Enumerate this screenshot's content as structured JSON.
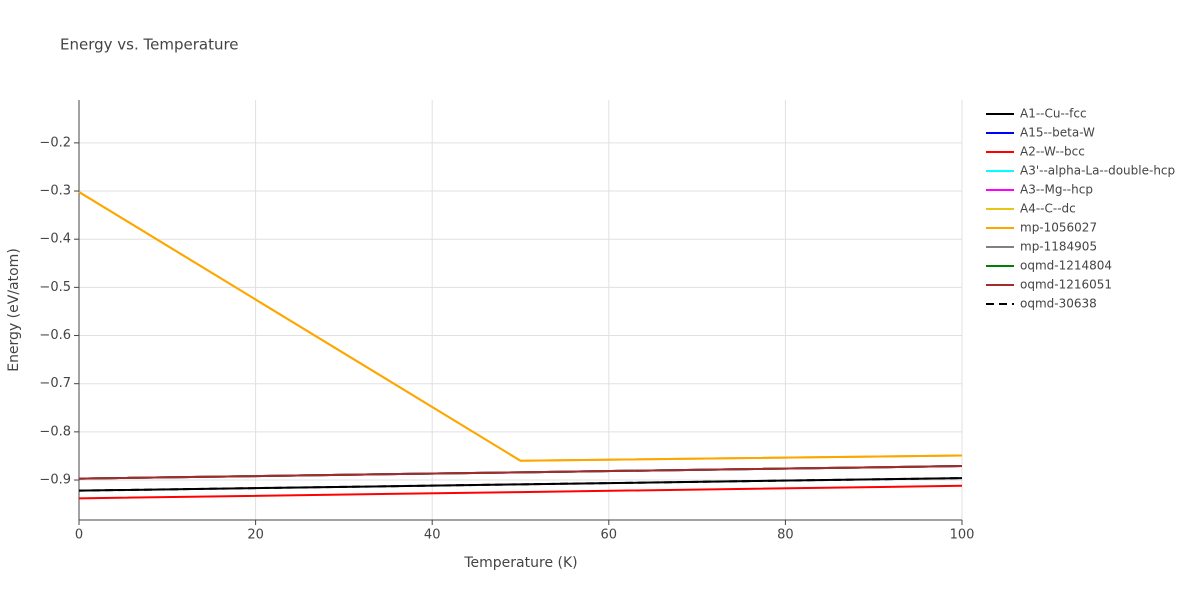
{
  "chart_data": {
    "type": "line",
    "title": "Energy vs. Temperature",
    "x_label": "Temperature (K)",
    "y_label": "Energy (eV/atom)",
    "x": [
      0,
      50,
      100
    ],
    "series": [
      {
        "name": "A1--Cu--fcc",
        "color": "#000000",
        "values": [
          -0.922,
          -0.909,
          -0.896
        ]
      },
      {
        "name": "A15--beta-W",
        "color": "#0000ff",
        "values": [
          -0.897,
          -0.884,
          -0.871
        ]
      },
      {
        "name": "A2--W--bcc",
        "color": "#ff0000",
        "values": [
          -0.938,
          -0.925,
          -0.912
        ]
      },
      {
        "name": "A3'--alpha-La--double-hcp",
        "color": "#00ffff",
        "values": [
          -0.897,
          -0.884,
          -0.871
        ]
      },
      {
        "name": "A3--Mg--hcp",
        "color": "#ff00ff",
        "values": [
          -0.897,
          -0.884,
          -0.871
        ]
      },
      {
        "name": "A4--C--dc",
        "color": "#e6c619",
        "values": [
          -0.302,
          -0.86,
          -0.849
        ]
      },
      {
        "name": "mp-1056027",
        "color": "#ffa500",
        "values": [
          -0.302,
          -0.86,
          -0.849
        ]
      },
      {
        "name": "mp-1184905",
        "color": "#808080",
        "values": [
          -0.897,
          -0.884,
          -0.871
        ]
      },
      {
        "name": "oqmd-1214804",
        "color": "#008000",
        "values": [
          -0.897,
          -0.884,
          -0.871
        ]
      },
      {
        "name": "oqmd-1216051",
        "color": "#a52a2a",
        "values": [
          -0.897,
          -0.884,
          -0.871
        ]
      },
      {
        "name": "oqmd-30638",
        "color": "#000000",
        "dash": "dash",
        "values": [
          -0.922,
          -0.909,
          -0.896
        ]
      }
    ],
    "xlim": [
      0,
      100
    ],
    "xticks": [
      0,
      20,
      40,
      60,
      80,
      100
    ],
    "ylim": [
      -0.983,
      -0.111
    ],
    "yticks": [
      {
        "value": -0.9,
        "label": "−0.9"
      },
      {
        "value": -0.8,
        "label": "−0.8"
      },
      {
        "value": -0.7,
        "label": "−0.7"
      },
      {
        "value": -0.6,
        "label": "−0.6"
      },
      {
        "value": -0.5,
        "label": "−0.5"
      },
      {
        "value": -0.4,
        "label": "−0.4"
      },
      {
        "value": -0.3,
        "label": "−0.3"
      },
      {
        "value": -0.2,
        "label": "−0.2"
      }
    ],
    "grid": true,
    "legend": "right"
  }
}
